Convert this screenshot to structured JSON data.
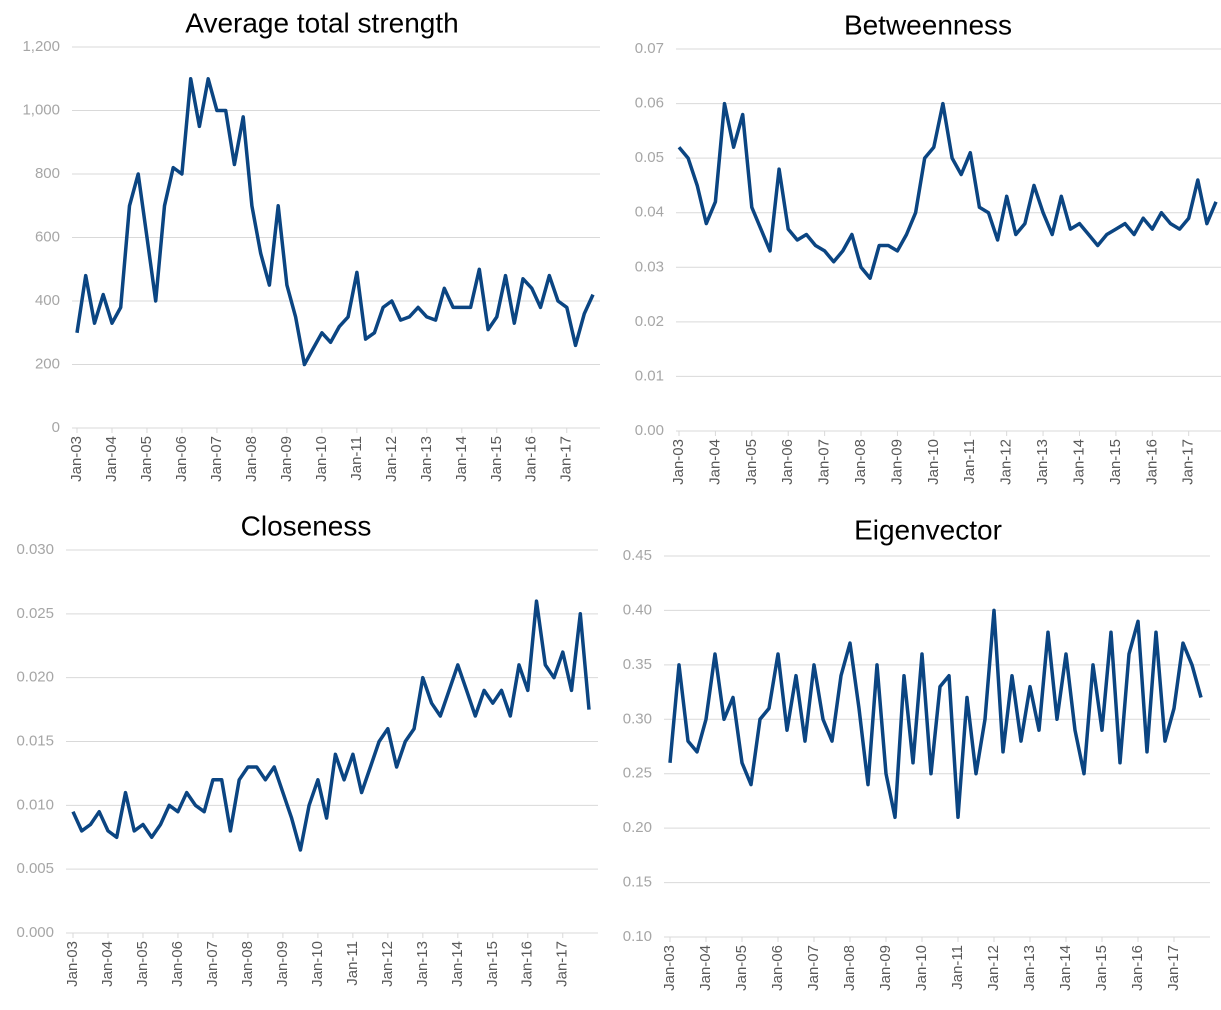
{
  "chart_data": [
    {
      "type": "line",
      "title": "Average total strength",
      "color": "#0b4582",
      "grid": true,
      "categories": [
        "Jan-03",
        null,
        null,
        null,
        "Jan-04",
        null,
        null,
        null,
        "Jan-05",
        null,
        null,
        null,
        "Jan-06",
        null,
        null,
        null,
        "Jan-07",
        null,
        null,
        null,
        "Jan-08",
        null,
        null,
        null,
        "Jan-09",
        null,
        null,
        null,
        "Jan-10",
        null,
        null,
        null,
        "Jan-11",
        null,
        null,
        null,
        "Jan-12",
        null,
        null,
        null,
        "Jan-13",
        null,
        null,
        null,
        "Jan-14",
        null,
        null,
        null,
        "Jan-15",
        null,
        null,
        null,
        "Jan-16",
        null,
        null,
        null,
        "Jan-17",
        null,
        null,
        null
      ],
      "values": [
        300,
        480,
        330,
        420,
        330,
        380,
        700,
        800,
        600,
        400,
        700,
        820,
        800,
        1100,
        950,
        1100,
        1000,
        1000,
        830,
        980,
        700,
        550,
        450,
        700,
        450,
        350,
        200,
        250,
        300,
        270,
        320,
        350,
        490,
        280,
        300,
        380,
        400,
        340,
        350,
        380,
        350,
        340,
        440,
        380,
        380,
        380,
        500,
        310,
        350,
        480,
        330,
        470,
        440,
        380,
        480,
        400,
        380,
        260,
        360,
        420
      ],
      "ylim": [
        0,
        1200
      ],
      "yticks": [
        0,
        200,
        400,
        600,
        800,
        {
          "value": 1000,
          "label": "1,000"
        },
        {
          "value": 1200,
          "label": "1,200"
        }
      ]
    },
    {
      "type": "line",
      "title": "Betweenness",
      "color": "#0b4582",
      "grid": true,
      "categories": [
        "Jan-03",
        null,
        null,
        null,
        "Jan-04",
        null,
        null,
        null,
        "Jan-05",
        null,
        null,
        null,
        "Jan-06",
        null,
        null,
        null,
        "Jan-07",
        null,
        null,
        null,
        "Jan-08",
        null,
        null,
        null,
        "Jan-09",
        null,
        null,
        null,
        "Jan-10",
        null,
        null,
        null,
        "Jan-11",
        null,
        null,
        null,
        "Jan-12",
        null,
        null,
        null,
        "Jan-13",
        null,
        null,
        null,
        "Jan-14",
        null,
        null,
        null,
        "Jan-15",
        null,
        null,
        null,
        "Jan-16",
        null,
        null,
        null,
        "Jan-17",
        null,
        null,
        null
      ],
      "values": [
        0.052,
        0.05,
        0.045,
        0.038,
        0.042,
        0.06,
        0.052,
        0.058,
        0.041,
        0.037,
        0.033,
        0.048,
        0.037,
        0.035,
        0.036,
        0.034,
        0.033,
        0.031,
        0.033,
        0.036,
        0.03,
        0.028,
        0.034,
        0.034,
        0.033,
        0.036,
        0.04,
        0.05,
        0.052,
        0.06,
        0.05,
        0.047,
        0.051,
        0.041,
        0.04,
        0.035,
        0.043,
        0.036,
        0.038,
        0.045,
        0.04,
        0.036,
        0.043,
        0.037,
        0.038,
        0.036,
        0.034,
        0.036,
        0.037,
        0.038,
        0.036,
        0.039,
        0.037,
        0.04,
        0.038,
        0.037,
        0.039,
        0.046,
        0.038,
        0.042
      ],
      "ylim": [
        0,
        0.07
      ],
      "yticks": [
        {
          "value": 0,
          "label": "0.00"
        },
        0.01,
        0.02,
        0.03,
        0.04,
        0.05,
        0.06,
        0.07
      ]
    },
    {
      "type": "line",
      "title": "Closeness",
      "color": "#0b4582",
      "grid": true,
      "categories": [
        "Jan-03",
        null,
        null,
        null,
        "Jan-04",
        null,
        null,
        null,
        "Jan-05",
        null,
        null,
        null,
        "Jan-06",
        null,
        null,
        null,
        "Jan-07",
        null,
        null,
        null,
        "Jan-08",
        null,
        null,
        null,
        "Jan-09",
        null,
        null,
        null,
        "Jan-10",
        null,
        null,
        null,
        "Jan-11",
        null,
        null,
        null,
        "Jan-12",
        null,
        null,
        null,
        "Jan-13",
        null,
        null,
        null,
        "Jan-14",
        null,
        null,
        null,
        "Jan-15",
        null,
        null,
        null,
        "Jan-16",
        null,
        null,
        null,
        "Jan-17",
        null,
        null,
        null
      ],
      "values": [
        0.0095,
        0.008,
        0.0085,
        0.0095,
        0.008,
        0.0075,
        0.011,
        0.008,
        0.0085,
        0.0075,
        0.0085,
        0.01,
        0.0095,
        0.011,
        0.01,
        0.0095,
        0.012,
        0.012,
        0.008,
        0.012,
        0.013,
        0.013,
        0.012,
        0.013,
        0.011,
        0.009,
        0.0065,
        0.01,
        0.012,
        0.009,
        0.014,
        0.012,
        0.014,
        0.011,
        0.013,
        0.015,
        0.016,
        0.013,
        0.015,
        0.016,
        0.02,
        0.018,
        0.017,
        0.019,
        0.021,
        0.019,
        0.017,
        0.019,
        0.018,
        0.019,
        0.017,
        0.021,
        0.019,
        0.026,
        0.021,
        0.02,
        0.022,
        0.019,
        0.025,
        0.0175
      ],
      "ylim": [
        0,
        0.03
      ],
      "yticks": [
        {
          "value": 0,
          "label": "0.000"
        },
        0.005,
        {
          "value": 0.01,
          "label": "0.010"
        },
        0.015,
        {
          "value": 0.02,
          "label": "0.020"
        },
        0.025,
        {
          "value": 0.03,
          "label": "0.030"
        }
      ]
    },
    {
      "type": "line",
      "title": "Eigenvector",
      "color": "#0b4582",
      "grid": true,
      "categories": [
        "Jan-03",
        null,
        null,
        null,
        "Jan-04",
        null,
        null,
        null,
        "Jan-05",
        null,
        null,
        null,
        "Jan-06",
        null,
        null,
        null,
        "Jan-07",
        null,
        null,
        null,
        "Jan-08",
        null,
        null,
        null,
        "Jan-09",
        null,
        null,
        null,
        "Jan-10",
        null,
        null,
        null,
        "Jan-11",
        null,
        null,
        null,
        "Jan-12",
        null,
        null,
        null,
        "Jan-13",
        null,
        null,
        null,
        "Jan-14",
        null,
        null,
        null,
        "Jan-15",
        null,
        null,
        null,
        "Jan-16",
        null,
        null,
        null,
        "Jan-17",
        null,
        null,
        null
      ],
      "values": [
        0.26,
        0.35,
        0.28,
        0.27,
        0.3,
        0.36,
        0.3,
        0.32,
        0.26,
        0.24,
        0.3,
        0.31,
        0.36,
        0.29,
        0.34,
        0.28,
        0.35,
        0.3,
        0.28,
        0.34,
        0.37,
        0.31,
        0.24,
        0.35,
        0.25,
        0.21,
        0.34,
        0.26,
        0.36,
        0.25,
        0.33,
        0.34,
        0.21,
        0.32,
        0.25,
        0.3,
        0.4,
        0.27,
        0.34,
        0.28,
        0.33,
        0.29,
        0.38,
        0.3,
        0.36,
        0.29,
        0.25,
        0.35,
        0.29,
        0.38,
        0.26,
        0.36,
        0.39,
        0.27,
        0.38,
        0.28,
        0.31,
        0.37,
        0.35,
        0.32
      ],
      "ylim": [
        0.1,
        0.45
      ],
      "yticks": [
        {
          "value": 0.1,
          "label": "0.10"
        },
        0.15,
        {
          "value": 0.2,
          "label": "0.20"
        },
        0.25,
        {
          "value": 0.3,
          "label": "0.30"
        },
        0.35,
        {
          "value": 0.4,
          "label": "0.40"
        },
        0.45
      ]
    }
  ]
}
